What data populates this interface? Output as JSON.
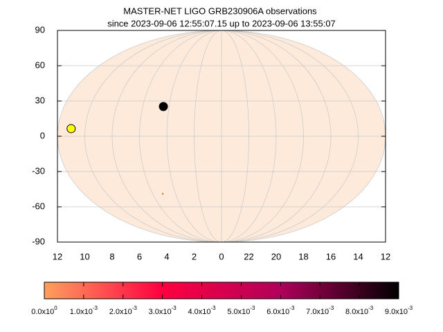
{
  "chart_data": {
    "type": "skymap",
    "title": [
      "MASTER-NET LIGO GRB230906A observations",
      "since 2023-09-06 12:55:07.15 up to 2023-09-06 13:55:07"
    ],
    "xlim": [
      12,
      -12
    ],
    "xticks": [
      12,
      10,
      8,
      6,
      4,
      2,
      0,
      {
        "value": -2,
        "label": "22"
      },
      {
        "value": -4,
        "label": "20"
      },
      {
        "value": -6,
        "label": "18"
      },
      {
        "value": -8,
        "label": "16"
      },
      {
        "value": -10,
        "label": "14"
      },
      {
        "value": -12,
        "label": "12"
      }
    ],
    "ylim": [
      -90,
      90
    ],
    "yticks": [
      90,
      60,
      30,
      0,
      -30,
      -60,
      -90
    ],
    "grid": true,
    "map_color": "#fdeadb",
    "points": [
      {
        "x": 11.0,
        "y": 6.5,
        "color": "#ffff00"
      },
      {
        "x": 4.25,
        "y": 25.3,
        "color": "#000000"
      },
      {
        "x": 4.3,
        "y": -49,
        "color": "#e06020"
      }
    ],
    "colorbar": {
      "lim": [
        0,
        0.009
      ],
      "colors": [
        "#ffa060",
        "#ff0040",
        "#b0005a",
        "#000000"
      ],
      "ticks": [
        {
          "value": 0,
          "label": "0.0x10",
          "exp": "0"
        },
        {
          "value": 0.001,
          "label": "1.0x10",
          "exp": "-3"
        },
        {
          "value": 0.002,
          "label": "2.0x10",
          "exp": "-3"
        },
        {
          "value": 0.003,
          "label": "3.0x10",
          "exp": "-3"
        },
        {
          "value": 0.004,
          "label": "4.0x10",
          "exp": "-3"
        },
        {
          "value": 0.005,
          "label": "5.0x10",
          "exp": "-3"
        },
        {
          "value": 0.006,
          "label": "6.0x10",
          "exp": "-3"
        },
        {
          "value": 0.007,
          "label": "7.0x10",
          "exp": "-3"
        },
        {
          "value": 0.008,
          "label": "8.0x10",
          "exp": "-3"
        },
        {
          "value": 0.009,
          "label": "9.0x10",
          "exp": "-3"
        }
      ]
    }
  }
}
